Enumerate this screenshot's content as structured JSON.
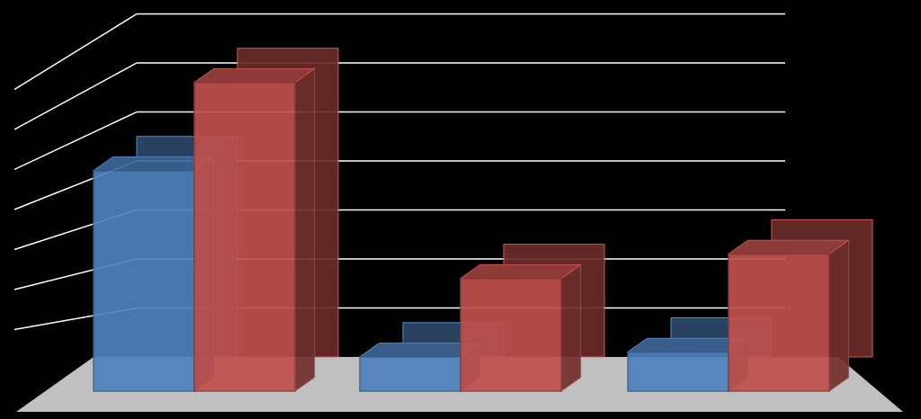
{
  "chart_data": {
    "type": "bar",
    "categories": [
      "",
      "",
      ""
    ],
    "series": [
      {
        "values": [
          4.5,
          0.7,
          0.8
        ]
      },
      {
        "values": [
          6.3,
          2.3,
          2.8
        ]
      }
    ],
    "ylim": [
      0,
      7
    ],
    "grid": true,
    "colors": {
      "background": "#000000",
      "floor": "#c0c0c0",
      "gridline": "#ffffff",
      "series": [
        "#4f81bd",
        "#c0504d"
      ]
    }
  }
}
